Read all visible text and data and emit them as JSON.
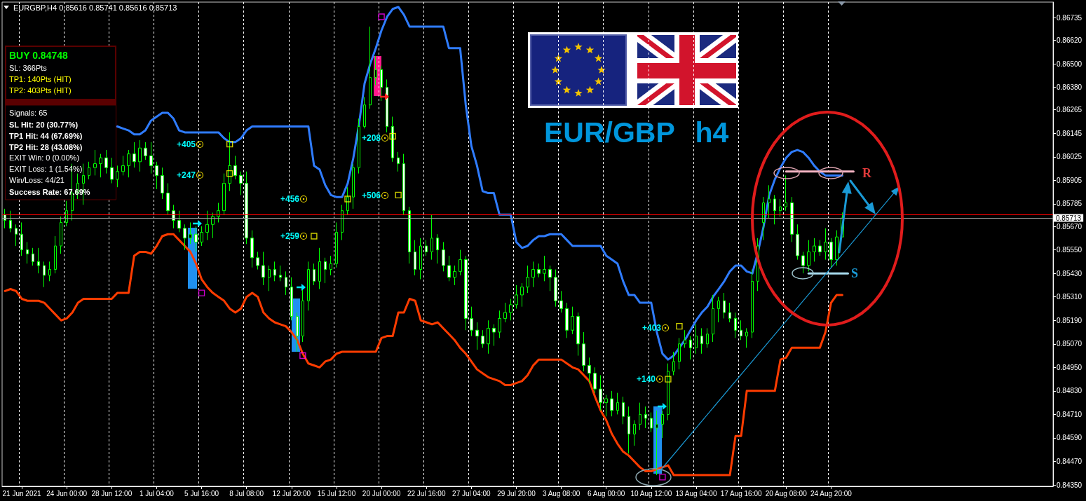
{
  "chart_data": {
    "type": "candlestick",
    "title": "EURGBP,H4 0.85616 0.85741 0.85616 0.85713",
    "categories": [
      null,
      null,
      null,
      "21 Jun 2021",
      null,
      null,
      null,
      null,
      null,
      null,
      null,
      "24 Jun 00:00",
      null,
      null,
      null,
      null,
      null,
      null,
      null,
      "28 Jun 12:00",
      null,
      null,
      null,
      null,
      null,
      null,
      null,
      "1 Jul 04:00",
      null,
      null,
      null,
      null,
      null,
      null,
      null,
      "5 Jul 16:00",
      null,
      null,
      null,
      null,
      null,
      null,
      null,
      "8 Jul 08:00",
      null,
      null,
      null,
      null,
      null,
      null,
      null,
      "12 Jul 20:00",
      null,
      null,
      null,
      null,
      null,
      null,
      null,
      "15 Jul 12:00",
      null,
      null,
      null,
      null,
      null,
      null,
      null,
      "20 Jul 00:00",
      null,
      null,
      null,
      null,
      null,
      null,
      null,
      "22 Jul 16:00",
      null,
      null,
      null,
      null,
      null,
      null,
      null,
      "27 Jul 04:00",
      null,
      null,
      null,
      null,
      null,
      null,
      null,
      "29 Jul 20:00",
      null,
      null,
      null,
      null,
      null,
      null,
      null,
      "3 Aug 08:00",
      null,
      null,
      null,
      null,
      null,
      null,
      null,
      "6 Aug 00:00",
      null,
      null,
      null,
      null,
      null,
      null,
      null,
      "10 Aug 12:00",
      null,
      null,
      null,
      null,
      null,
      null,
      null,
      "13 Aug 04:00",
      null,
      null,
      null,
      null,
      null,
      null,
      null,
      "17 Aug 16:00",
      null,
      null,
      null,
      null,
      null,
      null,
      null,
      "20 Aug 08:00",
      null,
      null,
      null,
      null,
      null,
      null,
      null,
      "24 Aug 20:00",
      null,
      null,
      null,
      null,
      null,
      null,
      null,
      null,
      null,
      null,
      null,
      null,
      null,
      null,
      null,
      null,
      null,
      null,
      null,
      null,
      null,
      null,
      null,
      null,
      null,
      null,
      null,
      null,
      null,
      null,
      null,
      null,
      null,
      null,
      null,
      null,
      null,
      null,
      null
    ],
    "ohlc": [
      [
        0.8573,
        0.8576,
        0.8566,
        0.857
      ],
      [
        0.857,
        0.8575,
        0.8564,
        0.8566
      ],
      [
        0.8566,
        0.8568,
        0.8557,
        0.8563
      ],
      [
        0.8563,
        0.8569,
        0.8552,
        0.8555
      ],
      [
        0.8555,
        0.8559,
        0.8548,
        0.8553
      ],
      [
        0.8553,
        0.8556,
        0.8547,
        0.8549
      ],
      [
        0.8549,
        0.8556,
        0.8543,
        0.8547
      ],
      [
        0.8547,
        0.8549,
        0.8536,
        0.8542
      ],
      [
        0.8542,
        0.8549,
        0.8539,
        0.8545
      ],
      [
        0.8545,
        0.8562,
        0.8543,
        0.8557
      ],
      [
        0.8557,
        0.8572,
        0.8553,
        0.8569
      ],
      [
        0.8569,
        0.858,
        0.8567,
        0.8575
      ],
      [
        0.8575,
        0.8599,
        0.857,
        0.8584
      ],
      [
        0.8584,
        0.8594,
        0.8581,
        0.8589
      ],
      [
        0.8589,
        0.8599,
        0.8578,
        0.8593
      ],
      [
        0.8593,
        0.86,
        0.8591,
        0.8597
      ],
      [
        0.8597,
        0.8606,
        0.8593,
        0.8599
      ],
      [
        0.8599,
        0.8604,
        0.8592,
        0.8602
      ],
      [
        0.8602,
        0.8606,
        0.8594,
        0.8597
      ],
      [
        0.8597,
        0.8602,
        0.8589,
        0.8591
      ],
      [
        0.8591,
        0.8598,
        0.8587,
        0.8595
      ],
      [
        0.8595,
        0.8603,
        0.8593,
        0.8598
      ],
      [
        0.8598,
        0.8606,
        0.8592,
        0.8604
      ],
      [
        0.8604,
        0.861,
        0.8597,
        0.86
      ],
      [
        0.86,
        0.8611,
        0.8595,
        0.8607
      ],
      [
        0.8607,
        0.861,
        0.8601,
        0.8603
      ],
      [
        0.8603,
        0.861,
        0.8594,
        0.8598
      ],
      [
        0.8598,
        0.86,
        0.8586,
        0.8593
      ],
      [
        0.8593,
        0.8597,
        0.8581,
        0.8584
      ],
      [
        0.8584,
        0.8589,
        0.8573,
        0.8575
      ],
      [
        0.8575,
        0.8578,
        0.8566,
        0.857
      ],
      [
        0.857,
        0.8575,
        0.8564,
        0.8566
      ],
      [
        0.8566,
        0.8568,
        0.8555,
        0.8561
      ],
      [
        0.8561,
        0.8569,
        0.8558,
        0.8563
      ],
      [
        0.8563,
        0.8567,
        0.8554,
        0.8559
      ],
      [
        0.8559,
        0.8567,
        0.8557,
        0.8564
      ],
      [
        0.8564,
        0.8575,
        0.856,
        0.8568
      ],
      [
        0.8568,
        0.8574,
        0.8561,
        0.8572
      ],
      [
        0.8572,
        0.8579,
        0.8569,
        0.8575
      ],
      [
        0.8575,
        0.8594,
        0.8573,
        0.8589
      ],
      [
        0.8589,
        0.8615,
        0.8585,
        0.8598
      ],
      [
        0.8598,
        0.8603,
        0.8591,
        0.8593
      ],
      [
        0.8593,
        0.8595,
        0.8583,
        0.8589
      ],
      [
        0.8589,
        0.8595,
        0.8558,
        0.8561
      ],
      [
        0.8561,
        0.8565,
        0.8546,
        0.8551
      ],
      [
        0.8551,
        0.8554,
        0.8545,
        0.8547
      ],
      [
        0.8547,
        0.8554,
        0.8537,
        0.8541
      ],
      [
        0.8541,
        0.8547,
        0.8534,
        0.8545
      ],
      [
        0.8545,
        0.8549,
        0.8539,
        0.8542
      ],
      [
        0.8542,
        0.8547,
        0.8539,
        0.8541
      ],
      [
        0.8541,
        0.8544,
        0.8532,
        0.8536
      ],
      [
        0.8536,
        0.8541,
        0.8519,
        0.8521
      ],
      [
        0.8521,
        0.8523,
        0.8503,
        0.8511
      ],
      [
        0.8511,
        0.8535,
        0.8508,
        0.8529
      ],
      [
        0.8529,
        0.8549,
        0.8524,
        0.8545
      ],
      [
        0.8545,
        0.8548,
        0.8537,
        0.8539
      ],
      [
        0.8539,
        0.8556,
        0.8535,
        0.8549
      ],
      [
        0.8549,
        0.8551,
        0.8538,
        0.8545
      ],
      [
        0.8545,
        0.8552,
        0.8542,
        0.8548
      ],
      [
        0.8548,
        0.8569,
        0.8546,
        0.8564
      ],
      [
        0.8564,
        0.8578,
        0.856,
        0.8575
      ],
      [
        0.8575,
        0.8587,
        0.8573,
        0.8582
      ],
      [
        0.8582,
        0.8599,
        0.8576,
        0.8597
      ],
      [
        0.8597,
        0.8622,
        0.8594,
        0.8618
      ],
      [
        0.8618,
        0.8633,
        0.8617,
        0.8629
      ],
      [
        0.8629,
        0.8669,
        0.8627,
        0.8643
      ],
      [
        0.8643,
        0.8654,
        0.8639,
        0.8647
      ],
      [
        0.8647,
        0.8649,
        0.8631,
        0.8638
      ],
      [
        0.8638,
        0.8642,
        0.8615,
        0.8618
      ],
      [
        0.8618,
        0.8623,
        0.86,
        0.8602
      ],
      [
        0.8602,
        0.8605,
        0.8595,
        0.8599
      ],
      [
        0.8599,
        0.8604,
        0.8573,
        0.8575
      ],
      [
        0.8575,
        0.8577,
        0.8548,
        0.8554
      ],
      [
        0.8554,
        0.856,
        0.8542,
        0.8545
      ],
      [
        0.8545,
        0.8561,
        0.854,
        0.8557
      ],
      [
        0.8557,
        0.856,
        0.8552,
        0.8554
      ],
      [
        0.8554,
        0.8573,
        0.855,
        0.8561
      ],
      [
        0.8561,
        0.8563,
        0.8548,
        0.8555
      ],
      [
        0.8555,
        0.8559,
        0.8544,
        0.8547
      ],
      [
        0.8547,
        0.8552,
        0.8539,
        0.8541
      ],
      [
        0.8541,
        0.8547,
        0.8537,
        0.8544
      ],
      [
        0.8544,
        0.8555,
        0.8542,
        0.855
      ],
      [
        0.855,
        0.8552,
        0.8514,
        0.852
      ],
      [
        0.852,
        0.8526,
        0.8511,
        0.8514
      ],
      [
        0.8514,
        0.8518,
        0.8504,
        0.8511
      ],
      [
        0.8511,
        0.8514,
        0.8505,
        0.8507
      ],
      [
        0.8507,
        0.8519,
        0.8502,
        0.8515
      ],
      [
        0.8515,
        0.8517,
        0.8506,
        0.8513
      ],
      [
        0.8513,
        0.8524,
        0.851,
        0.852
      ],
      [
        0.852,
        0.8528,
        0.8518,
        0.8523
      ],
      [
        0.8523,
        0.853,
        0.8519,
        0.8527
      ],
      [
        0.8527,
        0.8537,
        0.8525,
        0.8532
      ],
      [
        0.8532,
        0.8538,
        0.8526,
        0.8536
      ],
      [
        0.8536,
        0.8547,
        0.8533,
        0.8541
      ],
      [
        0.8541,
        0.8549,
        0.8536,
        0.8545
      ],
      [
        0.8545,
        0.8548,
        0.8541,
        0.8543
      ],
      [
        0.8543,
        0.8552,
        0.8539,
        0.8545
      ],
      [
        0.8545,
        0.8547,
        0.8534,
        0.8541
      ],
      [
        0.8541,
        0.8545,
        0.8526,
        0.8529
      ],
      [
        0.8529,
        0.8534,
        0.8523,
        0.8525
      ],
      [
        0.8525,
        0.8528,
        0.851,
        0.8514
      ],
      [
        0.8514,
        0.8526,
        0.8512,
        0.8521
      ],
      [
        0.8521,
        0.8523,
        0.8501,
        0.8507
      ],
      [
        0.8507,
        0.8513,
        0.8493,
        0.8496
      ],
      [
        0.8496,
        0.85,
        0.8487,
        0.8492
      ],
      [
        0.8492,
        0.8495,
        0.8482,
        0.8484
      ],
      [
        0.8484,
        0.8491,
        0.8473,
        0.8477
      ],
      [
        0.8477,
        0.8481,
        0.847,
        0.8479
      ],
      [
        0.8479,
        0.8483,
        0.847,
        0.8473
      ],
      [
        0.8473,
        0.8482,
        0.8471,
        0.8477
      ],
      [
        0.8477,
        0.848,
        0.8466,
        0.847
      ],
      [
        0.847,
        0.8475,
        0.8451,
        0.8461
      ],
      [
        0.8461,
        0.8468,
        0.8455,
        0.8466
      ],
      [
        0.8466,
        0.8477,
        0.8463,
        0.8471
      ],
      [
        0.8471,
        0.8475,
        0.8464,
        0.8469
      ],
      [
        0.8469,
        0.8472,
        0.8462,
        0.8464
      ],
      [
        0.8464,
        0.8473,
        0.844,
        0.8466
      ],
      [
        0.8466,
        0.8473,
        0.8459,
        0.8471
      ],
      [
        0.8471,
        0.8497,
        0.8468,
        0.8493
      ],
      [
        0.8493,
        0.8503,
        0.8491,
        0.8498
      ],
      [
        0.8498,
        0.851,
        0.8494,
        0.8507
      ],
      [
        0.8507,
        0.8514,
        0.8505,
        0.8509
      ],
      [
        0.8509,
        0.8511,
        0.8499,
        0.8505
      ],
      [
        0.8505,
        0.8517,
        0.8502,
        0.8511
      ],
      [
        0.8511,
        0.8515,
        0.8502,
        0.8507
      ],
      [
        0.8507,
        0.8515,
        0.8505,
        0.8512
      ],
      [
        0.8512,
        0.8532,
        0.8508,
        0.8525
      ],
      [
        0.8525,
        0.8531,
        0.8518,
        0.8529
      ],
      [
        0.8529,
        0.8533,
        0.852,
        0.8523
      ],
      [
        0.8523,
        0.8528,
        0.8518,
        0.852
      ],
      [
        0.852,
        0.8523,
        0.851,
        0.8514
      ],
      [
        0.8514,
        0.8519,
        0.8509,
        0.8511
      ],
      [
        0.8511,
        0.8515,
        0.8505,
        0.8513
      ],
      [
        0.8513,
        0.8545,
        0.851,
        0.8539
      ],
      [
        0.8539,
        0.8561,
        0.8534,
        0.8557
      ],
      [
        0.8569,
        0.8582,
        0.856,
        0.8579
      ],
      [
        0.8579,
        0.8588,
        0.8571,
        0.8581
      ],
      [
        0.8581,
        0.8583,
        0.8568,
        0.8575
      ],
      [
        0.8575,
        0.8581,
        0.8572,
        0.8577
      ],
      [
        0.8577,
        0.8593,
        0.8575,
        0.8579
      ],
      [
        0.8579,
        0.8582,
        0.8559,
        0.8563
      ],
      [
        0.8563,
        0.8568,
        0.855,
        0.8552
      ],
      [
        0.8552,
        0.8554,
        0.8543,
        0.8547
      ],
      [
        0.8547,
        0.856,
        0.8544,
        0.8554
      ],
      [
        0.8554,
        0.8561,
        0.8549,
        0.8557
      ],
      [
        0.8557,
        0.856,
        0.8552,
        0.8554
      ],
      [
        0.8554,
        0.8566,
        0.855,
        0.8559
      ],
      [
        0.8559,
        0.8561,
        0.8546,
        0.855
      ],
      [
        0.855,
        0.8565,
        0.8547,
        0.85616
      ],
      [
        0.85616,
        0.85741,
        0.85616,
        0.85713
      ],
      null,
      null,
      null,
      null,
      null,
      null,
      null,
      null,
      null,
      null,
      null,
      null,
      null,
      null,
      null,
      null,
      null,
      null,
      null,
      null,
      null,
      null,
      null,
      null,
      null,
      null,
      null,
      null,
      null,
      null,
      null,
      null,
      null,
      null,
      null,
      null,
      null
    ],
    "color": "#00ff00",
    "series": [
      {
        "type": "line",
        "color": "#2f7cff",
        "values": [
          null,
          null,
          null,
          null,
          null,
          null,
          null,
          null,
          null,
          null,
          null,
          null,
          null,
          null,
          null,
          null,
          null,
          null,
          null,
          null,
          0.8618,
          0.8617,
          0.8616,
          0.8614,
          0.8614,
          0.8616,
          0.8621,
          0.8623,
          0.8625,
          0.8625,
          0.8622,
          0.8616,
          0.8615,
          0.8615,
          0.8615,
          0.8615,
          0.8615,
          0.8615,
          0.8615,
          0.8612,
          0.861,
          0.861,
          0.8612,
          0.8616,
          0.8618,
          0.8618,
          0.8618,
          0.8618,
          0.8618,
          0.8618,
          0.8618,
          0.8618,
          0.8618,
          0.8618,
          0.8618,
          0.8598,
          0.8596,
          0.8588,
          0.8583,
          0.8582,
          0.8582,
          0.8589,
          0.8602,
          0.8619,
          0.864,
          0.865,
          0.8658,
          0.8667,
          0.8674,
          0.8678,
          0.8679,
          0.8675,
          0.8669,
          0.8669,
          0.8669,
          0.8669,
          0.8669,
          0.8669,
          0.8669,
          0.8658,
          0.8658,
          0.8658,
          0.8629,
          0.8608,
          0.8598,
          0.8585,
          0.8584,
          0.8584,
          0.8573,
          0.8573,
          0.8573,
          0.8559,
          0.8556,
          0.8557,
          0.856,
          0.8562,
          0.8562,
          0.8563,
          0.8563,
          0.8563,
          0.856,
          0.8557,
          0.8557,
          0.8557,
          0.8557,
          0.8557,
          0.8557,
          0.8552,
          0.855,
          0.8548,
          0.8539,
          0.8532,
          0.8532,
          0.8528,
          0.8528,
          0.8528,
          0.8513,
          0.8502,
          0.8499,
          0.8501,
          0.8505,
          0.8509,
          0.8514,
          0.8519,
          0.8523,
          0.8526,
          0.8531,
          0.8535,
          0.8539,
          0.8544,
          0.8547,
          0.8547,
          0.8544,
          0.8543,
          0.8554,
          0.8567,
          0.8583,
          0.8591,
          0.8597,
          0.8602,
          0.8605,
          0.8606,
          0.8605,
          0.8602,
          0.8598,
          0.8595,
          0.8593,
          0.8593,
          0.8593,
          0.8593,
          null,
          null,
          null,
          null,
          null,
          null,
          null,
          null,
          null,
          null,
          null,
          null,
          null,
          null,
          null,
          null,
          null,
          null,
          null,
          null,
          null,
          null,
          null,
          null,
          null,
          null,
          null,
          null,
          null,
          null,
          null,
          null,
          null,
          null,
          null,
          null,
          null
        ]
      },
      {
        "type": "line",
        "color": "#ff3c00",
        "values": [
          0.8534,
          0.8535,
          0.8534,
          0.853,
          0.8529,
          0.8529,
          0.8529,
          0.8528,
          0.8525,
          0.8522,
          0.8519,
          0.852,
          0.8523,
          0.8528,
          0.853,
          0.853,
          0.853,
          0.853,
          0.853,
          0.853,
          0.8533,
          0.8533,
          0.8533,
          0.8552,
          0.8554,
          0.8554,
          0.8553,
          0.8557,
          0.8562,
          0.8563,
          0.8563,
          0.856,
          0.8557,
          0.8554,
          0.8548,
          0.854,
          0.8536,
          0.8533,
          0.8531,
          0.8529,
          0.8525,
          0.8523,
          0.8525,
          0.8531,
          0.8533,
          0.8531,
          0.8523,
          0.852,
          0.8518,
          0.8517,
          0.8516,
          0.8513,
          0.8509,
          0.8502,
          0.8497,
          0.8496,
          0.8495,
          0.8498,
          0.8499,
          0.8502,
          0.8503,
          0.8503,
          0.8503,
          0.8503,
          0.8503,
          0.8503,
          0.8503,
          0.851,
          0.8511,
          0.8511,
          0.8523,
          0.8523,
          0.853,
          0.8529,
          0.8519,
          0.8518,
          0.8517,
          0.8518,
          0.8515,
          0.8512,
          0.8509,
          0.8505,
          0.8502,
          0.8498,
          0.8494,
          0.8492,
          0.849,
          0.8489,
          0.8488,
          0.8486,
          0.8486,
          0.8487,
          0.8488,
          0.8491,
          0.8496,
          0.8499,
          0.8499,
          0.8499,
          0.8499,
          0.8499,
          0.8497,
          0.8495,
          0.8494,
          0.8491,
          0.8488,
          0.848,
          0.8473,
          0.8468,
          0.8461,
          0.8456,
          0.8452,
          0.845,
          0.8447,
          0.8444,
          0.8442,
          0.8442,
          0.8443,
          0.8444,
          0.8445,
          0.844,
          0.844,
          0.844,
          0.844,
          0.844,
          0.844,
          0.844,
          0.844,
          0.844,
          0.844,
          0.844,
          0.846,
          0.846,
          0.8483,
          0.8483,
          0.8483,
          0.8483,
          0.8483,
          0.8483,
          0.8499,
          0.85,
          0.8505,
          0.8505,
          0.8505,
          0.8505,
          0.8505,
          0.8505,
          0.8513,
          0.8528,
          0.8532,
          0.8532,
          null,
          null,
          null,
          null,
          null,
          null,
          null,
          null,
          null,
          null,
          null,
          null,
          null,
          null,
          null,
          null,
          null,
          null,
          null,
          null,
          null,
          null,
          null,
          null,
          null,
          null,
          null,
          null,
          null,
          null,
          null,
          null,
          null,
          null,
          null,
          null,
          null
        ]
      },
      {
        "type": "line",
        "color": "#f4b4c2",
        "values": [
          null,
          null,
          null,
          null,
          null,
          null,
          null,
          null,
          null,
          null,
          null,
          null,
          null,
          null,
          null,
          null,
          null,
          null,
          null,
          null,
          null,
          null,
          null,
          null,
          null,
          null,
          null,
          null,
          null,
          null,
          null,
          null,
          null,
          null,
          null,
          null,
          null,
          null,
          null,
          null,
          null,
          null,
          null,
          null,
          null,
          null,
          null,
          null,
          null,
          null,
          null,
          null,
          null,
          null,
          null,
          null,
          null,
          null,
          null,
          null,
          null,
          null,
          null,
          null,
          null,
          null,
          null,
          null,
          null,
          null,
          null,
          null,
          null,
          null,
          null,
          null,
          null,
          null,
          null,
          null,
          null,
          null,
          null,
          null,
          null,
          null,
          null,
          null,
          null,
          null,
          null,
          null,
          null,
          null,
          null,
          null,
          null,
          null,
          null,
          null,
          null,
          null,
          null,
          null,
          null,
          null,
          null,
          null,
          null,
          null,
          null,
          null,
          null,
          null,
          null,
          null,
          null,
          null,
          null,
          null,
          null,
          null,
          null,
          null,
          null,
          null,
          null,
          null,
          null,
          null,
          null,
          null,
          null,
          null,
          null,
          null,
          null,
          null,
          null,
          0.8595,
          0.8595,
          0.8595,
          0.8595,
          0.8595,
          0.8595,
          0.8595,
          0.8595,
          0.8595,
          0.8595,
          0.8595,
          0.8595,
          0.8595,
          null,
          null,
          null,
          null,
          null,
          null,
          null,
          null,
          null,
          null,
          null,
          null,
          null,
          null,
          null,
          null,
          null,
          null,
          null,
          null,
          null,
          null,
          null,
          null,
          null,
          null,
          null,
          null,
          null,
          null,
          null,
          null,
          null,
          null,
          null
        ]
      },
      {
        "type": "line",
        "color": "#a8dcee",
        "values": [
          null,
          null,
          null,
          null,
          null,
          null,
          null,
          null,
          null,
          null,
          null,
          null,
          null,
          null,
          null,
          null,
          null,
          null,
          null,
          null,
          null,
          null,
          null,
          null,
          null,
          null,
          null,
          null,
          null,
          null,
          null,
          null,
          null,
          null,
          null,
          null,
          null,
          null,
          null,
          null,
          null,
          null,
          null,
          null,
          null,
          null,
          null,
          null,
          null,
          null,
          null,
          null,
          null,
          null,
          null,
          null,
          null,
          null,
          null,
          null,
          null,
          null,
          null,
          null,
          null,
          null,
          null,
          null,
          null,
          null,
          null,
          null,
          null,
          null,
          null,
          null,
          null,
          null,
          null,
          null,
          null,
          null,
          null,
          null,
          null,
          null,
          null,
          null,
          null,
          null,
          null,
          null,
          null,
          null,
          null,
          null,
          null,
          null,
          null,
          null,
          null,
          null,
          null,
          null,
          null,
          null,
          null,
          null,
          null,
          null,
          null,
          null,
          null,
          null,
          null,
          null,
          null,
          null,
          null,
          null,
          null,
          null,
          null,
          null,
          null,
          null,
          null,
          null,
          null,
          null,
          null,
          null,
          null,
          null,
          null,
          null,
          null,
          null,
          null,
          null,
          null,
          null,
          null,
          0.8543,
          0.8543,
          0.8543,
          0.8543,
          0.8543,
          0.8543,
          0.8543,
          0.8543,
          null,
          null,
          null,
          null,
          null,
          null,
          null,
          null,
          null,
          null,
          null,
          null,
          null,
          null,
          null,
          null,
          null,
          null,
          null,
          null,
          null,
          null,
          null,
          null,
          null,
          null,
          null,
          null,
          null,
          null,
          null,
          null,
          null,
          null,
          null,
          null
        ]
      },
      {
        "type": "scatter",
        "color": "#ffff00",
        "marker": "square",
        "values": [
          null,
          null,
          null,
          null,
          null,
          null,
          null,
          null,
          null,
          null,
          null,
          null,
          null,
          null,
          null,
          null,
          null,
          null,
          null,
          null,
          null,
          null,
          null,
          null,
          null,
          null,
          null,
          null,
          null,
          null,
          null,
          null,
          null,
          null,
          null,
          null,
          null,
          null,
          null,
          null,
          0.8609,
          null,
          null,
          null,
          null,
          null,
          null,
          null,
          null,
          null,
          null,
          null,
          null,
          null,
          null,
          null,
          null,
          null,
          null,
          null,
          null,
          0.8581,
          null,
          null,
          null,
          null,
          null,
          null,
          null,
          0.8613,
          null,
          null,
          null,
          null,
          null,
          null,
          null,
          null,
          null,
          null,
          null,
          null,
          null,
          null,
          null,
          null,
          null,
          null,
          null,
          null,
          null,
          null,
          null,
          null,
          null,
          null,
          null,
          null,
          null,
          null,
          null,
          null,
          null,
          null,
          null,
          null,
          null,
          null,
          null,
          null,
          null,
          null,
          null,
          null,
          null,
          null,
          null,
          null,
          null,
          null,
          0.8516,
          null,
          null,
          null,
          null,
          null,
          null,
          null,
          null,
          null,
          null,
          null,
          null,
          null,
          null,
          null,
          null,
          null,
          null,
          null,
          null,
          null,
          null,
          null,
          null,
          null,
          null,
          null,
          null,
          null,
          null,
          null,
          null,
          null,
          null,
          null,
          null,
          null,
          null,
          null,
          null,
          null,
          null,
          null,
          null,
          null,
          null,
          null,
          null,
          null,
          null,
          null,
          null,
          null,
          null,
          null,
          null,
          null,
          null,
          null,
          null,
          null,
          null,
          null,
          null,
          null,
          null
        ]
      },
      {
        "type": "scatter",
        "color": "#ffff00",
        "marker": "square",
        "values": [
          null,
          null,
          null,
          null,
          null,
          null,
          null,
          null,
          null,
          null,
          null,
          null,
          null,
          null,
          null,
          null,
          null,
          null,
          null,
          null,
          null,
          null,
          null,
          null,
          null,
          null,
          null,
          null,
          null,
          null,
          null,
          null,
          null,
          null,
          null,
          null,
          null,
          null,
          null,
          null,
          0.8594,
          null,
          null,
          null,
          null,
          null,
          null,
          null,
          null,
          null,
          null,
          null,
          null,
          null,
          null,
          0.8562,
          null,
          null,
          null,
          null,
          null,
          null,
          null,
          null,
          null,
          null,
          null,
          null,
          null,
          null,
          0.8583,
          null,
          null,
          null,
          null,
          null,
          null,
          null,
          null,
          null,
          null,
          null,
          null,
          null,
          null,
          null,
          null,
          null,
          null,
          null,
          null,
          null,
          null,
          null,
          null,
          null,
          null,
          null,
          null,
          null,
          null,
          null,
          null,
          null,
          null,
          null,
          null,
          null,
          null,
          null,
          null,
          null,
          null,
          null,
          null,
          null,
          null,
          null,
          0.8489,
          null,
          null,
          null,
          null,
          null,
          null,
          null,
          null,
          null,
          null,
          null,
          null,
          null,
          null,
          null,
          null,
          null,
          null,
          null,
          null,
          null,
          null,
          null,
          null,
          null,
          null,
          null,
          null,
          null,
          null,
          null,
          null,
          null,
          null,
          null,
          null,
          null,
          null,
          null,
          null,
          null,
          null,
          null,
          null,
          null,
          null,
          null,
          null,
          null,
          null,
          null,
          null,
          null,
          null,
          null,
          null,
          null,
          null,
          null,
          null,
          null,
          null,
          null,
          null,
          null,
          null,
          null,
          null
        ]
      },
      {
        "type": "scatter",
        "color": "#ff00ff",
        "marker": "square",
        "values": [
          null,
          null,
          null,
          null,
          null,
          null,
          null,
          null,
          null,
          null,
          null,
          null,
          null,
          null,
          null,
          null,
          null,
          null,
          null,
          null,
          null,
          null,
          null,
          null,
          null,
          null,
          null,
          null,
          null,
          null,
          null,
          null,
          null,
          null,
          null,
          0.8533,
          null,
          null,
          null,
          null,
          null,
          null,
          null,
          null,
          null,
          null,
          null,
          null,
          null,
          null,
          null,
          null,
          null,
          0.8501,
          null,
          null,
          null,
          null,
          null,
          null,
          null,
          null,
          null,
          null,
          null,
          null,
          null,
          0.8674,
          null,
          null,
          null,
          null,
          null,
          null,
          null,
          null,
          null,
          null,
          null,
          null,
          null,
          null,
          null,
          null,
          null,
          null,
          null,
          null,
          null,
          null,
          null,
          null,
          null,
          null,
          null,
          null,
          null,
          null,
          null,
          null,
          null,
          null,
          null,
          null,
          null,
          null,
          null,
          null,
          null,
          null,
          null,
          null,
          null,
          null,
          null,
          null,
          null,
          0.8439,
          null,
          null,
          null,
          null,
          null,
          null,
          null,
          null,
          null,
          null,
          null,
          null,
          null,
          null,
          null,
          null,
          null,
          null,
          null,
          null,
          null,
          null,
          null,
          null,
          null,
          null,
          null,
          null,
          null,
          null,
          null,
          null,
          null,
          null,
          null,
          null,
          null,
          null,
          null,
          null,
          null,
          null,
          null,
          null,
          null,
          null,
          null,
          null,
          null,
          null,
          null,
          null,
          null,
          null,
          null,
          null,
          null,
          null,
          null,
          null,
          null,
          null,
          null,
          null,
          null,
          null,
          null,
          null,
          null
        ]
      }
    ],
    "ylim": [
      0.84343,
      0.86815
    ],
    "yticks": [
      0.86735,
      {
        "value": 0.8662,
        "label": "0.86620"
      },
      {
        "value": 0.865,
        "label": "0.86500"
      },
      {
        "value": 0.8638,
        "label": "0.86380"
      },
      0.86265,
      0.86145,
      0.86025,
      0.85905,
      0.85785,
      {
        "value": 0.8567,
        "label": "0.85670"
      },
      {
        "value": 0.8555,
        "label": "0.85550"
      },
      {
        "value": 0.8543,
        "label": "0.85430"
      },
      {
        "value": 0.8531,
        "label": "0.85310"
      },
      {
        "value": 0.8519,
        "label": "0.85190"
      },
      {
        "value": 0.8507,
        "label": "0.85070"
      },
      {
        "value": 0.8495,
        "label": "0.84950"
      },
      {
        "value": 0.8483,
        "label": "0.84830"
      },
      {
        "value": 0.8471,
        "label": "0.84710"
      },
      {
        "value": 0.8459,
        "label": "0.84590"
      },
      {
        "value": 0.8447,
        "label": "0.84470"
      },
      {
        "value": 0.8435,
        "label": "0.84350"
      }
    ],
    "grid": "x",
    "ref_lines": [
      {
        "axis": "y",
        "value": 0.8573,
        "color": "#ff0000"
      },
      {
        "axis": "y",
        "value": 0.85713,
        "label": "0.85713",
        "color": "#a0a0a0"
      }
    ],
    "annotations": [
      "BUY 0.84748",
      "SL: 366Pts",
      "TP1: 140Pts (HIT)",
      "TP2: 403Pts (HIT)",
      "Signals: 65",
      "SL Hit: 20 (30.77%)",
      "TP1 Hit: 44 (67.69%)",
      "TP2 Hit: 28 (43.08%)",
      "EXIT Win: 0 (0.00%)",
      "EXIT Loss: 1 (1.54%)",
      "Win/Loss: 44/21",
      "Success Rate: 67.69%",
      "EUR/GBP h4",
      "+405",
      "+247",
      "+456",
      "+259",
      "+208",
      "+506",
      "+403",
      "+140",
      "R",
      "S"
    ]
  }
}
